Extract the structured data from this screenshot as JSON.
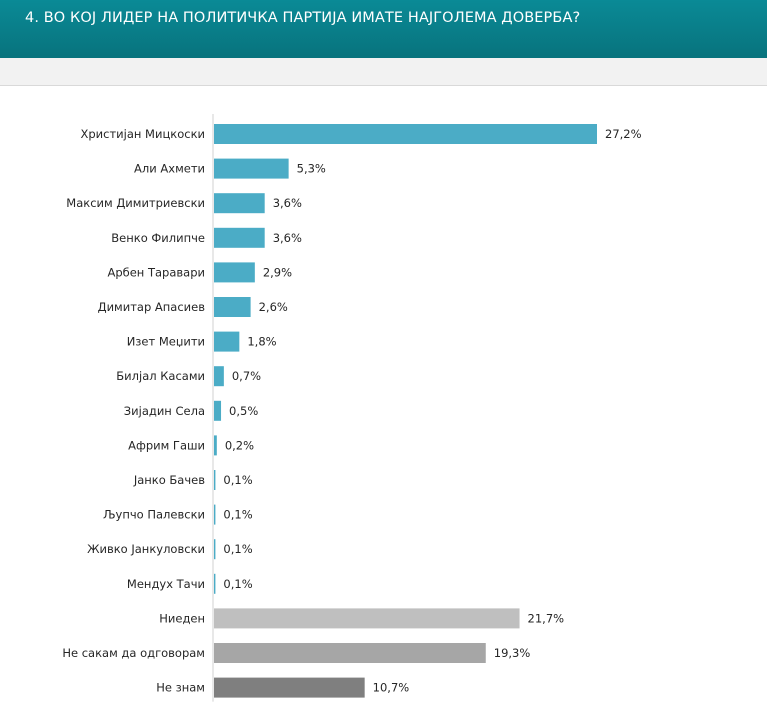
{
  "header": {
    "title": "4. ВО КОЈ ЛИДЕР НА ПОЛИТИЧКА ПАРТИЈА ИМАТЕ НАЈГОЛЕМА ДОВЕРБА?",
    "background": "#08737d"
  },
  "chart_data": {
    "type": "bar",
    "orientation": "horizontal",
    "categories": [
      "Христијан Мицкоски",
      "Али Ахмети",
      "Максим Димитриевски",
      "Венко Филипче",
      "Арбен Таравари",
      "Димитар Апасиев",
      "Изет Меџити",
      "Билјал Касами",
      "Зијадин Села",
      "Африм Гаши",
      "Јанко Бачев",
      "Љупчо Палевски",
      "Живко Јанкуловски",
      "Мендух Тачи",
      "Ниеден",
      "Не сакам да одговорам",
      "Не знам"
    ],
    "values": [
      27.2,
      5.3,
      3.6,
      3.6,
      2.9,
      2.6,
      1.8,
      0.7,
      0.5,
      0.2,
      0.1,
      0.1,
      0.1,
      0.1,
      21.7,
      19.3,
      10.7
    ],
    "labels": [
      "27,2%",
      "5,3%",
      "3,6%",
      "3,6%",
      "2,9%",
      "2,6%",
      "1,8%",
      "0,7%",
      "0,5%",
      "0,2%",
      "0,1%",
      "0,1%",
      "0,1%",
      "0,1%",
      "21,7%",
      "19,3%",
      "10,7%"
    ],
    "colors": [
      "#4bacc6",
      "#4bacc6",
      "#4bacc6",
      "#4bacc6",
      "#4bacc6",
      "#4bacc6",
      "#4bacc6",
      "#4bacc6",
      "#4bacc6",
      "#4bacc6",
      "#4bacc6",
      "#4bacc6",
      "#4bacc6",
      "#4bacc6",
      "#bfbfbf",
      "#a6a6a6",
      "#7f7f7f"
    ],
    "xlim": [
      0,
      30
    ],
    "grid": false,
    "legend": "none",
    "title": "",
    "xlabel": "",
    "ylabel": ""
  }
}
